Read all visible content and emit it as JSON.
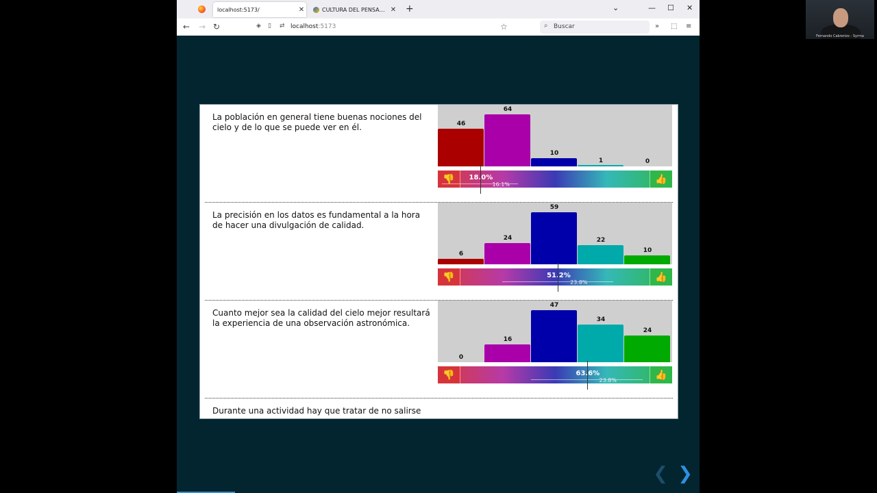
{
  "browser": {
    "tabs": [
      {
        "title": "localhost:5173/",
        "active": true
      },
      {
        "title": "CULTURA DEL PENSAMIENTO_",
        "active": false
      }
    ],
    "url_host": "localhost",
    "url_port": ":5173",
    "search_placeholder": "Buscar"
  },
  "questions": [
    {
      "text": "La población en general tiene buenas nociones del cielo y de lo que se puede ver en él.",
      "counts": [
        46,
        64,
        10,
        1,
        0
      ],
      "percent": "18.0%",
      "error": "16.1%",
      "percent_value": 18.0
    },
    {
      "text": "La precisión en los datos es fundamental a la hora de hacer una divulgación de calidad.",
      "counts": [
        6,
        24,
        59,
        22,
        10
      ],
      "percent": "51.2%",
      "error": "23.8%",
      "percent_value": 51.2
    },
    {
      "text": "Cuanto mejor sea la calidad del cielo mejor resultará la experiencia de una observación astronómica.",
      "counts": [
        0,
        16,
        47,
        34,
        24
      ],
      "percent": "63.6%",
      "error": "23.8%",
      "percent_value": 63.6
    },
    {
      "text": "Durante una actividad hay que tratar de no salirse",
      "counts": [],
      "percent": "",
      "error": "",
      "percent_value": null
    }
  ],
  "colors": {
    "bar_colors": [
      "#aa0000",
      "#aa00aa",
      "#0000aa",
      "#00aaaa",
      "#00aa00"
    ],
    "page_background": "#03252f",
    "chart_background": "#cfcfcf"
  },
  "webcam": {
    "caption": "Fernando Cabrerizo - Syrma"
  },
  "icons": {
    "thumb_down": "thumbs-down-icon",
    "thumb_up": "thumbs-up-icon",
    "next": "chevron-right-icon",
    "prev": "chevron-left-icon"
  }
}
